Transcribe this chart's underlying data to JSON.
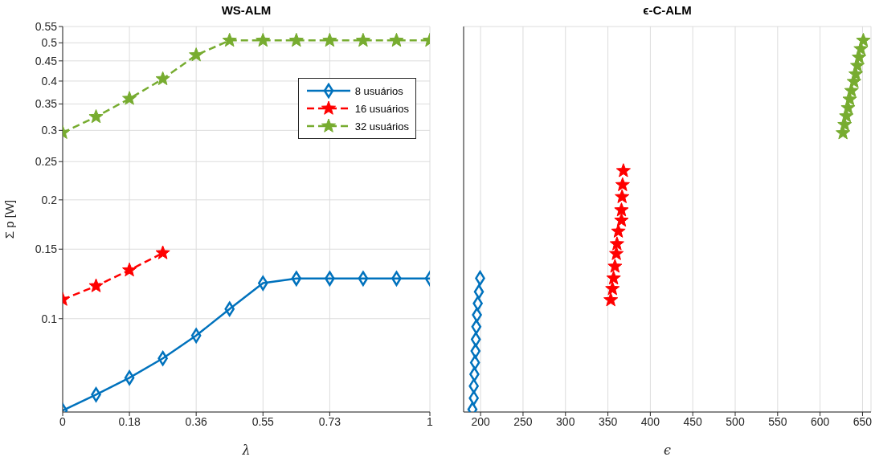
{
  "chart_data": [
    {
      "type": "line",
      "title": "WS-ALM",
      "xlabel": "λ",
      "ylabel": "Σ p [W]",
      "log": "y",
      "grid": true,
      "legend": "top right",
      "xlim": [
        0,
        1
      ],
      "xticks": [
        0,
        {
          "value": 0.1818,
          "label": "0.18"
        },
        {
          "value": 0.3636,
          "label": "0.36"
        },
        {
          "value": 0.5455,
          "label": "0.55"
        },
        {
          "value": 0.7273,
          "label": "0.73"
        },
        1
      ],
      "ylim": [
        0.058,
        0.55
      ],
      "yticks": [
        0.1,
        0.15,
        0.2,
        0.25,
        0.3,
        0.35,
        0.4,
        0.45,
        0.5,
        0.55
      ],
      "series": [
        {
          "name": "8 usuários",
          "color": "#0072bd",
          "marker": "diamond",
          "line_style": "solid",
          "x": [
            0,
            0.0909,
            0.1818,
            0.2727,
            0.3636,
            0.4545,
            0.5455,
            0.6364,
            0.7273,
            0.8182,
            0.9091,
            1
          ],
          "values": [
            0.0585,
            0.0642,
            0.0708,
            0.0793,
            0.0906,
            0.1058,
            0.123,
            0.1264,
            0.1264,
            0.1264,
            0.1264,
            0.1264
          ]
        },
        {
          "name": "16 usuários",
          "color": "#ff0000",
          "marker": "star",
          "line_style": "dashed",
          "x": [
            0,
            0.0909,
            0.1818,
            0.2727
          ],
          "values": [
            0.1118,
            0.121,
            0.1327,
            0.1467
          ]
        },
        {
          "name": "32 usuários",
          "color": "#77ac30",
          "marker": "star",
          "line_style": "dashed",
          "x": [
            0,
            0.0909,
            0.1818,
            0.2727,
            0.3636,
            0.4545,
            0.5455,
            0.6364,
            0.7273,
            0.8182,
            0.9091,
            1
          ],
          "values": [
            0.296,
            0.3247,
            0.361,
            0.405,
            0.4655,
            0.507,
            0.507,
            0.507,
            0.507,
            0.507,
            0.507,
            0.507
          ]
        }
      ]
    },
    {
      "type": "scatter",
      "title": "ϵ-C-ALM",
      "xlabel": "ϵ",
      "log": "y",
      "grid": true,
      "tick_labels": "x",
      "xlim": [
        180,
        660
      ],
      "xticks": [
        200,
        250,
        300,
        350,
        400,
        450,
        500,
        550,
        600,
        650
      ],
      "ylim": [
        0.058,
        0.55
      ],
      "yticks": [
        0.1,
        0.15,
        0.2,
        0.25,
        0.3,
        0.35,
        0.4,
        0.45,
        0.5,
        0.55
      ],
      "series": [
        {
          "color": "#0072bd",
          "marker": "diamond",
          "x": [
            190.4,
            192,
            192,
            192.7,
            193.4,
            194,
            194.4,
            195,
            195.7,
            196.7,
            198,
            199.4
          ],
          "values": [
            0.0589,
            0.0629,
            0.0675,
            0.0723,
            0.0774,
            0.0828,
            0.0886,
            0.0954,
            0.1022,
            0.1093,
            0.117,
            0.1266
          ]
        },
        {
          "color": "#ff0000",
          "marker": "star",
          "x": [
            353.4,
            355.4,
            356.7,
            358.3,
            360,
            360.7,
            362.3,
            366,
            366,
            366.7,
            367.3,
            368.3
          ],
          "values": [
            0.1115,
            0.119,
            0.1266,
            0.1356,
            0.146,
            0.1546,
            0.1664,
            0.1774,
            0.1884,
            0.2035,
            0.2183,
            0.2369
          ]
        },
        {
          "color": "#77ac30",
          "marker": "star",
          "x": [
            627,
            629,
            631,
            633,
            635,
            637,
            640,
            642,
            644,
            646,
            648,
            651
          ],
          "values": [
            0.2954,
            0.31,
            0.326,
            0.342,
            0.3595,
            0.378,
            0.3985,
            0.4165,
            0.4375,
            0.4593,
            0.4825,
            0.507
          ]
        }
      ]
    }
  ]
}
